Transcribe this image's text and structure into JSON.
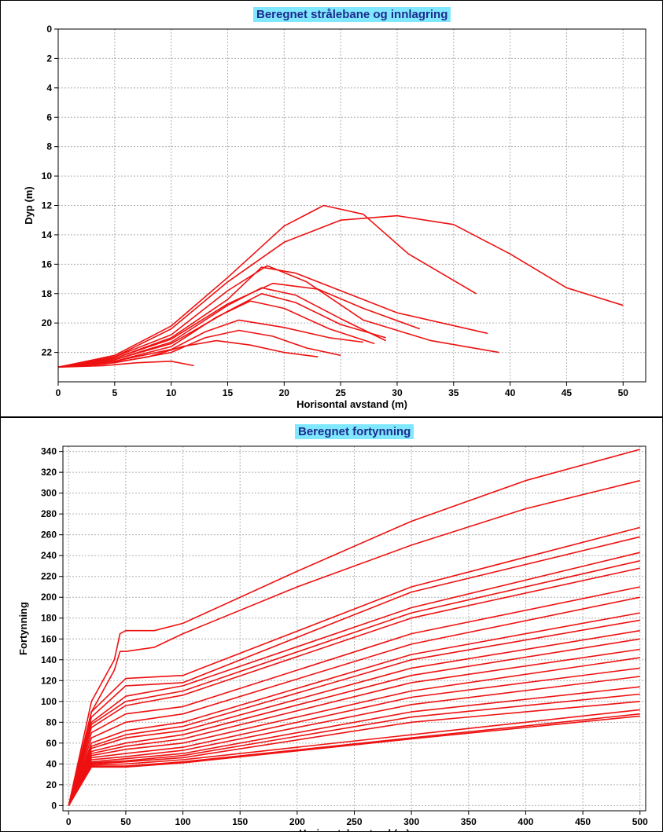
{
  "colors": {
    "series": "#ee1111",
    "grid": "#b0b0b0",
    "title_bg": "#7fe8ff",
    "title_fg": "#1e2a8c",
    "axis": "#000000"
  },
  "chart_data": [
    {
      "type": "line",
      "title": "Beregnet strålebane og innlagring",
      "xlabel": "Horisontal avstand (m)",
      "ylabel": "Dyp (m)",
      "xlim": [
        0,
        52
      ],
      "ylim": [
        0,
        24
      ],
      "y_inverted": true,
      "x_ticks": [
        0,
        5,
        10,
        15,
        20,
        25,
        30,
        35,
        40,
        45,
        50
      ],
      "y_ticks": [
        0,
        2,
        4,
        6,
        8,
        10,
        12,
        14,
        16,
        18,
        20,
        22
      ],
      "grid": true,
      "note": "jet trajectories from (0, 23 m) rising to trapping depth",
      "series": [
        {
          "x": [
            0,
            5,
            10,
            15,
            20,
            23.5,
            27,
            31,
            37
          ],
          "y": [
            23,
            22.2,
            20.2,
            16.9,
            13.4,
            12.0,
            12.6,
            15.3,
            18.0
          ]
        },
        {
          "x": [
            0,
            5,
            10,
            15,
            20,
            25,
            30,
            35,
            40,
            45,
            50
          ],
          "y": [
            23,
            22.3,
            20.4,
            17.2,
            14.5,
            13.0,
            12.7,
            13.3,
            15.3,
            17.6,
            18.8
          ]
        },
        {
          "x": [
            0,
            5,
            10,
            15,
            18.5,
            22,
            27,
            33,
            39
          ],
          "y": [
            23,
            22.3,
            20.8,
            17.8,
            16.1,
            17.2,
            19.8,
            21.2,
            22.0
          ]
        },
        {
          "x": [
            0,
            5,
            10,
            15,
            18,
            21,
            25,
            30,
            38
          ],
          "y": [
            23,
            22.4,
            21.0,
            18.4,
            16.2,
            16.6,
            17.8,
            19.3,
            20.7
          ]
        },
        {
          "x": [
            0,
            5,
            10,
            15,
            19,
            23,
            27,
            32
          ],
          "y": [
            23,
            22.4,
            21.1,
            18.7,
            17.3,
            17.7,
            19.0,
            20.4
          ]
        },
        {
          "x": [
            0,
            5,
            10,
            15,
            18,
            21,
            25,
            29
          ],
          "y": [
            23,
            22.5,
            21.3,
            18.8,
            17.6,
            18.1,
            19.7,
            21.2
          ]
        },
        {
          "x": [
            0,
            5,
            10,
            15,
            18,
            21,
            25,
            29
          ],
          "y": [
            23,
            22.5,
            21.4,
            19.2,
            18.0,
            18.6,
            20.1,
            21.0
          ]
        },
        {
          "x": [
            0,
            5,
            10,
            14,
            17,
            20,
            24,
            28
          ],
          "y": [
            23,
            22.6,
            21.6,
            19.6,
            18.5,
            19.0,
            20.4,
            21.4
          ]
        },
        {
          "x": [
            0,
            5,
            10,
            13,
            16,
            20,
            24,
            27
          ],
          "y": [
            23,
            22.6,
            21.8,
            20.6,
            19.8,
            20.3,
            21.0,
            21.3
          ]
        },
        {
          "x": [
            0,
            5,
            10,
            13,
            16,
            19,
            22,
            25
          ],
          "y": [
            23,
            22.7,
            22.0,
            21.0,
            20.5,
            20.9,
            21.7,
            22.2
          ]
        },
        {
          "x": [
            0,
            4,
            8,
            11,
            14,
            17,
            20,
            23
          ],
          "y": [
            23,
            22.8,
            22.3,
            21.6,
            21.2,
            21.5,
            22.0,
            22.3
          ]
        },
        {
          "x": [
            0,
            4,
            7,
            10,
            12
          ],
          "y": [
            23,
            22.9,
            22.7,
            22.6,
            22.9
          ]
        }
      ]
    },
    {
      "type": "line",
      "title": "Beregnet fortynning",
      "xlabel": "Horisontal avstand (m)",
      "ylabel": "Fortynning",
      "xlim": [
        -5,
        505
      ],
      "ylim": [
        -5,
        345
      ],
      "x_ticks": [
        0,
        50,
        100,
        150,
        200,
        250,
        300,
        350,
        400,
        450,
        500
      ],
      "y_ticks": [
        0,
        20,
        40,
        60,
        80,
        100,
        120,
        140,
        160,
        180,
        200,
        220,
        240,
        260,
        280,
        300,
        320,
        340
      ],
      "grid": true,
      "series": [
        {
          "x": [
            0,
            20,
            40,
            45,
            50,
            75,
            100,
            200,
            300,
            400,
            500
          ],
          "y": [
            0,
            100,
            140,
            165,
            168,
            168,
            175,
            225,
            273,
            312,
            342
          ]
        },
        {
          "x": [
            0,
            20,
            40,
            45,
            50,
            75,
            100,
            200,
            300,
            400,
            500
          ],
          "y": [
            0,
            90,
            130,
            148,
            148,
            152,
            165,
            210,
            250,
            285,
            312
          ]
        },
        {
          "x": [
            0,
            20,
            50,
            100,
            300,
            500
          ],
          "y": [
            0,
            90,
            122,
            125,
            210,
            267
          ]
        },
        {
          "x": [
            0,
            20,
            50,
            100,
            300,
            500
          ],
          "y": [
            0,
            85,
            115,
            118,
            205,
            258
          ]
        },
        {
          "x": [
            0,
            20,
            50,
            100,
            300,
            500
          ],
          "y": [
            0,
            80,
            105,
            115,
            190,
            243
          ]
        },
        {
          "x": [
            0,
            20,
            50,
            100,
            300,
            500
          ],
          "y": [
            0,
            78,
            100,
            110,
            185,
            235
          ]
        },
        {
          "x": [
            0,
            20,
            50,
            100,
            300,
            500
          ],
          "y": [
            0,
            75,
            96,
            106,
            180,
            228
          ]
        },
        {
          "x": [
            0,
            20,
            50,
            100,
            300,
            500
          ],
          "y": [
            0,
            70,
            88,
            95,
            165,
            210
          ]
        },
        {
          "x": [
            0,
            20,
            50,
            100,
            300,
            500
          ],
          "y": [
            0,
            65,
            80,
            88,
            155,
            200
          ]
        },
        {
          "x": [
            0,
            20,
            50,
            100,
            300,
            500
          ],
          "y": [
            0,
            60,
            72,
            80,
            145,
            185
          ]
        },
        {
          "x": [
            0,
            20,
            50,
            100,
            300,
            500
          ],
          "y": [
            0,
            57,
            68,
            76,
            140,
            178
          ]
        },
        {
          "x": [
            0,
            20,
            50,
            100,
            300,
            500
          ],
          "y": [
            0,
            55,
            65,
            72,
            132,
            168
          ]
        },
        {
          "x": [
            0,
            20,
            50,
            100,
            300,
            500
          ],
          "y": [
            0,
            52,
            60,
            68,
            125,
            160
          ]
        },
        {
          "x": [
            0,
            20,
            50,
            100,
            300,
            500
          ],
          "y": [
            0,
            50,
            57,
            64,
            118,
            150
          ]
        },
        {
          "x": [
            0,
            20,
            50,
            100,
            300,
            500
          ],
          "y": [
            0,
            48,
            54,
            60,
            110,
            142
          ]
        },
        {
          "x": [
            0,
            20,
            50,
            100,
            300,
            500
          ],
          "y": [
            0,
            46,
            50,
            56,
            104,
            132
          ]
        },
        {
          "x": [
            0,
            20,
            50,
            100,
            300,
            500
          ],
          "y": [
            0,
            44,
            47,
            53,
            97,
            124
          ]
        },
        {
          "x": [
            0,
            20,
            50,
            100,
            300,
            500
          ],
          "y": [
            0,
            42,
            45,
            50,
            90,
            114
          ]
        },
        {
          "x": [
            0,
            20,
            50,
            100,
            300,
            500
          ],
          "y": [
            0,
            41,
            43,
            48,
            85,
            107
          ]
        },
        {
          "x": [
            0,
            20,
            50,
            100,
            300,
            500
          ],
          "y": [
            0,
            40,
            42,
            46,
            80,
            100
          ]
        },
        {
          "x": [
            0,
            20,
            50,
            100,
            300,
            500
          ],
          "y": [
            0,
            39,
            40,
            44,
            68,
            92
          ]
        },
        {
          "x": [
            0,
            20,
            50,
            100,
            300,
            500
          ],
          "y": [
            0,
            38,
            38,
            42,
            65,
            88
          ]
        },
        {
          "x": [
            0,
            20,
            50,
            100,
            300,
            500
          ],
          "y": [
            0,
            37,
            37,
            41,
            64,
            86
          ]
        }
      ]
    }
  ]
}
